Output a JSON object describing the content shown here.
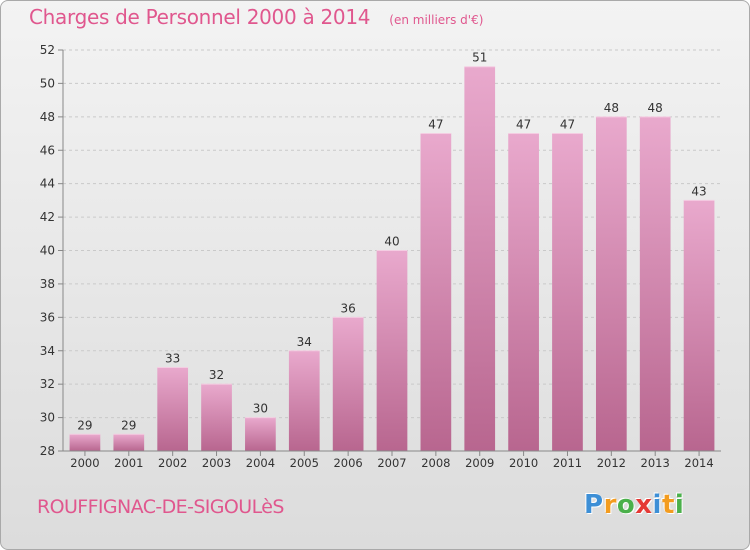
{
  "chart_data": {
    "type": "bar",
    "title": "Charges de Personnel 2000 à 2014",
    "subtitle": "(en milliers d'€)",
    "categories": [
      "2000",
      "2001",
      "2002",
      "2003",
      "2004",
      "2005",
      "2006",
      "2007",
      "2008",
      "2009",
      "2010",
      "2011",
      "2012",
      "2013",
      "2014"
    ],
    "values": [
      29,
      29,
      33,
      32,
      30,
      34,
      36,
      40,
      47,
      51,
      47,
      47,
      48,
      48,
      43
    ],
    "ylim": [
      28,
      52
    ],
    "yticks": [
      28,
      30,
      32,
      34,
      36,
      38,
      40,
      42,
      44,
      46,
      48,
      50,
      52
    ],
    "grid": true,
    "bar_color": "#c8709e",
    "data_labels": true
  },
  "commune": "ROUFFIGNAC-DE-SIGOULèS",
  "logo": {
    "letters": [
      "P",
      "r",
      "o",
      "x",
      "i",
      "t",
      "i"
    ],
    "colors": [
      "#3d8fd6",
      "#f39c1f",
      "#4bb04b",
      "#e53935",
      "#3d8fd6",
      "#f39c1f",
      "#4bb04b"
    ]
  }
}
